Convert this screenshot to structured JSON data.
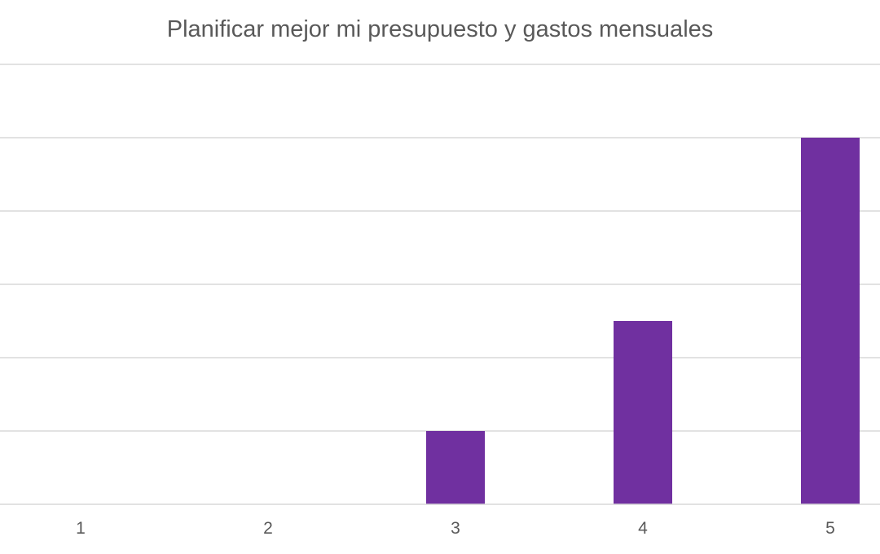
{
  "chart_data": {
    "type": "bar",
    "title": "Planificar mejor mi presupuesto y gastos mensuales",
    "categories": [
      "1",
      "2",
      "3",
      "4",
      "5"
    ],
    "values": [
      0,
      0,
      1,
      2.5,
      5
    ],
    "ylim": [
      0,
      6
    ],
    "grid": true,
    "legend": "none",
    "colors": {
      "bar": "#7030a0",
      "grid": "#d9d9d9",
      "text": "#595959"
    }
  }
}
